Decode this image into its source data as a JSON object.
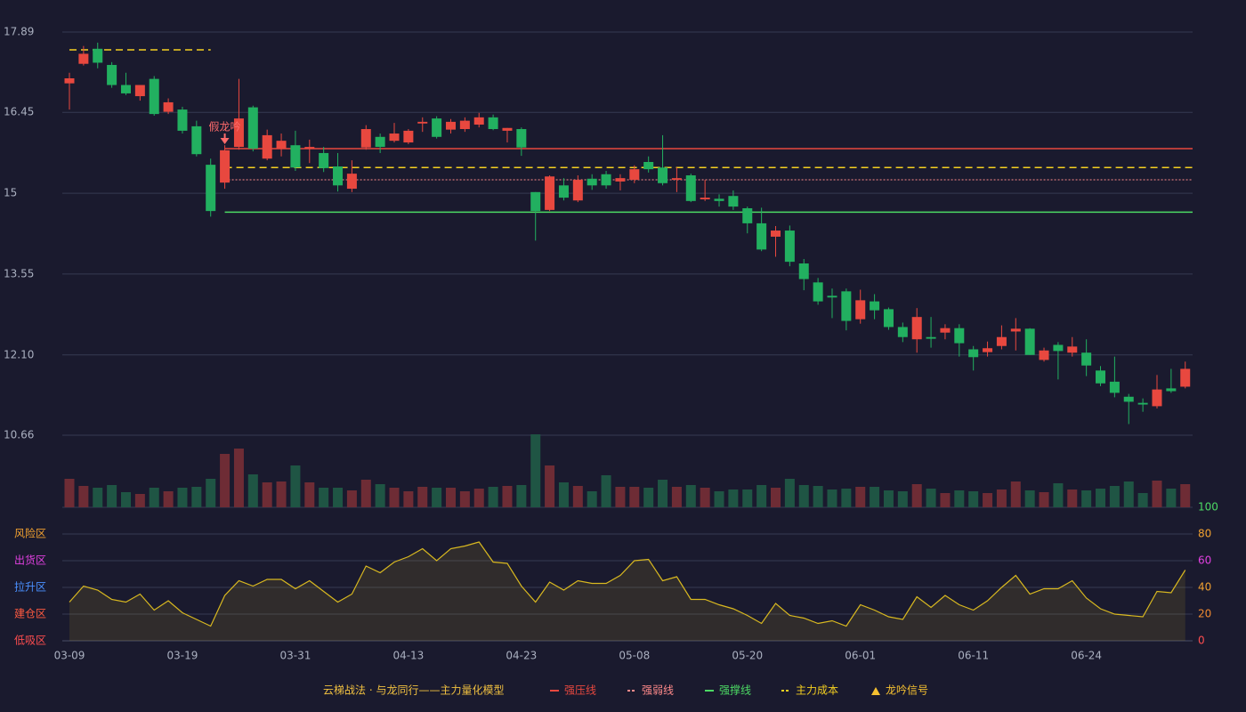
{
  "chart_data": {
    "type": "candlestick",
    "categories": [
      "03-09",
      null,
      null,
      null,
      null,
      null,
      null,
      null,
      "03-19",
      null,
      null,
      null,
      null,
      null,
      null,
      null,
      "03-31",
      null,
      null,
      null,
      null,
      null,
      null,
      null,
      "04-13",
      null,
      null,
      null,
      null,
      null,
      null,
      null,
      "04-23",
      null,
      null,
      null,
      null,
      null,
      null,
      null,
      "05-08",
      null,
      null,
      null,
      null,
      null,
      null,
      null,
      "05-20",
      null,
      null,
      null,
      null,
      null,
      null,
      null,
      "06-01",
      null,
      null,
      null,
      null,
      null,
      null,
      null,
      "06-11",
      null,
      null,
      null,
      null,
      null,
      null,
      null,
      "06-24",
      null,
      null,
      null,
      null,
      null,
      null,
      null
    ],
    "open": [
      16.97,
      17.32,
      17.59,
      17.3,
      16.94,
      16.74,
      17.05,
      16.46,
      16.5,
      16.2,
      15.51,
      15.19,
      15.83,
      16.54,
      15.62,
      15.8,
      15.86,
      15.8,
      15.72,
      15.48,
      15.08,
      15.82,
      16.01,
      15.94,
      15.91,
      16.25,
      16.34,
      16.14,
      16.15,
      16.23,
      16.36,
      16.12,
      16.15,
      15.02,
      14.7,
      15.14,
      14.87,
      15.26,
      15.34,
      15.21,
      15.24,
      15.56,
      15.46,
      15.24,
      15.32,
      14.89,
      14.9,
      14.95,
      14.73,
      14.46,
      14.22,
      14.33,
      13.74,
      13.4,
      13.16,
      13.24,
      12.74,
      13.06,
      12.92,
      12.6,
      12.38,
      12.42,
      12.5,
      12.58,
      12.2,
      12.15,
      12.26,
      12.52,
      12.57,
      12.01,
      12.28,
      12.14,
      12.14,
      11.82,
      11.62,
      11.35,
      11.24,
      11.18,
      11.5,
      11.53
    ],
    "close": [
      17.06,
      17.5,
      17.34,
      16.94,
      16.79,
      16.94,
      16.42,
      16.63,
      16.12,
      15.7,
      14.68,
      15.77,
      16.34,
      15.8,
      16.04,
      15.94,
      15.46,
      15.83,
      15.45,
      15.14,
      15.35,
      16.15,
      15.83,
      16.07,
      16.12,
      16.28,
      16.01,
      16.28,
      16.3,
      16.36,
      16.15,
      16.17,
      15.82,
      14.68,
      15.3,
      14.92,
      15.24,
      15.14,
      15.14,
      15.27,
      15.43,
      15.43,
      15.18,
      15.27,
      14.86,
      14.92,
      14.86,
      14.76,
      14.46,
      13.99,
      14.33,
      13.77,
      13.46,
      13.06,
      13.13,
      12.71,
      13.08,
      12.9,
      12.6,
      12.42,
      12.78,
      12.39,
      12.58,
      12.31,
      12.06,
      12.22,
      12.42,
      12.57,
      12.1,
      12.18,
      12.17,
      12.25,
      11.91,
      11.59,
      11.42,
      11.26,
      11.21,
      11.48,
      11.45,
      11.85
    ],
    "high": [
      17.16,
      17.64,
      17.7,
      17.35,
      17.16,
      16.94,
      17.1,
      16.7,
      16.55,
      16.3,
      15.62,
      15.86,
      17.05,
      16.57,
      16.14,
      16.07,
      16.12,
      15.96,
      15.83,
      15.72,
      15.59,
      16.22,
      16.07,
      16.26,
      16.15,
      16.36,
      16.38,
      16.33,
      16.36,
      16.44,
      16.41,
      16.17,
      16.18,
      15.02,
      15.32,
      15.27,
      15.32,
      15.34,
      15.4,
      15.34,
      15.5,
      15.66,
      16.04,
      15.46,
      15.35,
      15.24,
      14.98,
      15.05,
      14.76,
      14.74,
      14.41,
      14.42,
      13.82,
      13.48,
      13.29,
      13.29,
      13.27,
      13.19,
      12.95,
      12.68,
      12.94,
      12.78,
      12.65,
      12.65,
      12.26,
      12.34,
      12.63,
      12.76,
      12.58,
      12.23,
      12.33,
      12.42,
      12.38,
      11.9,
      12.07,
      11.4,
      11.32,
      11.74,
      11.85,
      11.98
    ],
    "low": [
      16.5,
      17.29,
      17.24,
      16.89,
      16.76,
      16.66,
      16.39,
      16.42,
      16.07,
      15.66,
      14.58,
      15.08,
      15.78,
      15.75,
      15.59,
      15.66,
      15.4,
      15.54,
      15.38,
      15.03,
      15.02,
      15.78,
      15.72,
      15.91,
      15.88,
      16.1,
      15.98,
      16.07,
      16.1,
      16.18,
      16.13,
      15.91,
      15.67,
      14.15,
      14.68,
      14.87,
      14.84,
      15.06,
      15.08,
      15.05,
      15.18,
      15.37,
      15.14,
      15.02,
      14.84,
      14.86,
      14.76,
      14.7,
      14.28,
      13.96,
      13.86,
      13.69,
      13.26,
      13.0,
      12.76,
      12.54,
      12.66,
      12.74,
      12.55,
      12.33,
      12.14,
      12.23,
      12.38,
      12.07,
      11.82,
      12.07,
      12.2,
      12.18,
      12.1,
      11.98,
      11.66,
      12.07,
      11.72,
      11.54,
      11.34,
      10.86,
      11.08,
      11.14,
      11.42,
      11.5
    ],
    "up_color": "#e8483f",
    "down_color": "#22b060",
    "volume": [
      32,
      24,
      22,
      25,
      17,
      15,
      22,
      18,
      22,
      23,
      32,
      60,
      66,
      37,
      28,
      29,
      47,
      28,
      22,
      22,
      19,
      31,
      26,
      22,
      18,
      23,
      22,
      22,
      18,
      21,
      23,
      24,
      25,
      82,
      47,
      28,
      24,
      18,
      36,
      23,
      23,
      22,
      31,
      23,
      25,
      22,
      18,
      20,
      20,
      25,
      22,
      32,
      25,
      24,
      20,
      21,
      23,
      23,
      19,
      18,
      26,
      21,
      16,
      19,
      18,
      16,
      20,
      29,
      19,
      17,
      27,
      20,
      19,
      21,
      24,
      29,
      16,
      30,
      21,
      26
    ],
    "volume_up_color": "#6e2c35",
    "volume_down_color": "#1f5544",
    "ylim": [
      10.66,
      17.89
    ],
    "yticks": [
      {
        "value": 10.66,
        "label": "10.66"
      },
      {
        "value": 12.1,
        "label": "12.10"
      },
      13.55,
      15,
      16.45,
      17.89
    ],
    "grid": true,
    "levels": [
      {
        "name": "强压线",
        "color": "#e8483f",
        "style": "solid",
        "values": [
          null,
          null,
          null,
          null,
          null,
          null,
          null,
          null,
          null,
          null,
          null,
          15.8,
          15.8,
          15.8,
          15.8,
          15.8,
          15.8,
          15.8,
          15.8,
          15.8,
          15.8,
          15.8,
          15.8,
          15.8,
          15.8,
          15.8,
          15.8,
          15.8,
          15.8,
          15.8,
          15.8,
          15.8,
          15.8,
          15.8,
          15.8,
          15.8,
          15.8,
          15.8,
          15.8,
          15.8,
          15.8,
          15.8,
          15.8,
          15.8,
          15.8,
          15.8,
          15.8,
          15.8,
          15.8,
          15.8,
          15.8,
          15.8,
          15.8,
          15.8,
          15.8,
          15.8,
          15.8,
          15.8,
          15.8,
          15.8,
          15.8,
          15.8,
          15.8,
          15.8,
          15.8,
          15.8,
          15.8,
          15.8,
          15.8,
          15.8,
          15.8,
          15.8,
          15.8,
          15.8,
          15.8,
          15.8,
          15.8,
          15.8,
          15.8,
          15.8
        ]
      },
      {
        "name": "强弱线",
        "color": "#ff8a8a",
        "style": "dotted",
        "values": [
          null,
          null,
          null,
          null,
          null,
          null,
          null,
          null,
          null,
          null,
          null,
          15.24,
          15.24,
          15.24,
          15.24,
          15.24,
          15.24,
          15.24,
          15.24,
          15.24,
          15.24,
          15.24,
          15.24,
          15.24,
          15.24,
          15.24,
          15.24,
          15.24,
          15.24,
          15.24,
          15.24,
          15.24,
          15.24,
          15.24,
          15.24,
          15.24,
          15.24,
          15.24,
          15.24,
          15.24,
          15.24,
          15.24,
          15.24,
          15.24,
          15.24,
          15.24,
          15.24,
          15.24,
          15.24,
          15.24,
          15.24,
          15.24,
          15.24,
          15.24,
          15.24,
          15.24,
          15.24,
          15.24,
          15.24,
          15.24,
          15.24,
          15.24,
          15.24,
          15.24,
          15.24,
          15.24,
          15.24,
          15.24,
          15.24,
          15.24,
          15.24,
          15.24,
          15.24,
          15.24,
          15.24,
          15.24,
          15.24,
          15.24,
          15.24,
          15.24
        ]
      },
      {
        "name": "强撑线",
        "color": "#4cd964",
        "style": "solid",
        "values": [
          null,
          null,
          null,
          null,
          null,
          null,
          null,
          null,
          null,
          null,
          null,
          14.66,
          14.66,
          14.66,
          14.66,
          14.66,
          14.66,
          14.66,
          14.66,
          14.66,
          14.66,
          14.66,
          14.66,
          14.66,
          14.66,
          14.66,
          14.66,
          14.66,
          14.66,
          14.66,
          14.66,
          14.66,
          14.66,
          14.66,
          14.66,
          14.66,
          14.66,
          14.66,
          14.66,
          14.66,
          14.66,
          14.66,
          14.66,
          14.66,
          14.66,
          14.66,
          14.66,
          14.66,
          14.66,
          14.66,
          14.66,
          14.66,
          14.66,
          14.66,
          14.66,
          14.66,
          14.66,
          14.66,
          14.66,
          14.66,
          14.66,
          14.66,
          14.66,
          14.66,
          14.66,
          14.66,
          14.66,
          14.66,
          14.66,
          14.66,
          14.66,
          14.66,
          14.66,
          14.66,
          14.66,
          14.66,
          14.66,
          14.66,
          14.66,
          14.66
        ]
      },
      {
        "name": "主力成本",
        "color": "#f5d020",
        "style": "dashed",
        "values": [
          17.57,
          17.57,
          17.57,
          17.57,
          17.57,
          17.57,
          17.57,
          17.57,
          17.57,
          17.57,
          17.57,
          15.46,
          15.46,
          15.46,
          15.46,
          15.46,
          15.46,
          15.46,
          15.46,
          15.46,
          15.46,
          15.46,
          15.46,
          15.46,
          15.46,
          15.46,
          15.46,
          15.46,
          15.46,
          15.46,
          15.46,
          15.46,
          15.46,
          15.46,
          15.46,
          15.46,
          15.46,
          15.46,
          15.46,
          15.46,
          15.46,
          15.46,
          15.46,
          15.46,
          15.46,
          15.46,
          15.46,
          15.46,
          15.46,
          15.46,
          15.46,
          15.46,
          15.46,
          15.46,
          15.46,
          15.46,
          15.46,
          15.46,
          15.46,
          15.46,
          15.46,
          15.46,
          15.46,
          15.46,
          15.46,
          15.46,
          15.46,
          15.46,
          15.46,
          15.46,
          15.46,
          15.46,
          15.46,
          15.46,
          15.46,
          15.46,
          15.46,
          15.46,
          15.46,
          15.46
        ]
      }
    ],
    "signal": {
      "name": "龙吟信号",
      "color": "#f5c030"
    },
    "annotation": {
      "text": "假龙吟",
      "x": 11,
      "color": "#ff6b6b"
    },
    "legend_title": "云梯战法 · 与龙同行——主力量化模型",
    "indicator": {
      "color": "#d8b820",
      "values": [
        29,
        41,
        38,
        31,
        29,
        35,
        23,
        30,
        21,
        16,
        11,
        34,
        45,
        41,
        46,
        46,
        39,
        45,
        37,
        29,
        35,
        56,
        51,
        59,
        63,
        69,
        60,
        69,
        71,
        74,
        59,
        58,
        41,
        29,
        44,
        38,
        45,
        43,
        43,
        49,
        60,
        61,
        45,
        48,
        31,
        31,
        27,
        24,
        19,
        13,
        28,
        19,
        17,
        13,
        15,
        11,
        27,
        23,
        18,
        16,
        33,
        25,
        34,
        27,
        23,
        30,
        40,
        49,
        35,
        39,
        39,
        45,
        32,
        24,
        20,
        19,
        18,
        37,
        36,
        53
      ]
    },
    "y2lim": [
      0,
      100
    ],
    "y2ticks": [
      0,
      20,
      40,
      60,
      80,
      100
    ],
    "y2tick_colors": [
      "#ff4d4f",
      "#f08a30",
      "#f0a030",
      "#e040e0",
      "#f0a030",
      "#4cd964"
    ],
    "zones": [
      {
        "name": "风险区",
        "value": 80,
        "color": "#f0a030"
      },
      {
        "name": "出货区",
        "value": 60,
        "color": "#e040e0"
      },
      {
        "name": "拉升区",
        "value": 40,
        "color": "#4a90ff"
      },
      {
        "name": "建仓区",
        "value": 20,
        "color": "#ff5a40"
      },
      {
        "name": "低吸区",
        "value": 0,
        "color": "#ff4d4f"
      }
    ]
  }
}
